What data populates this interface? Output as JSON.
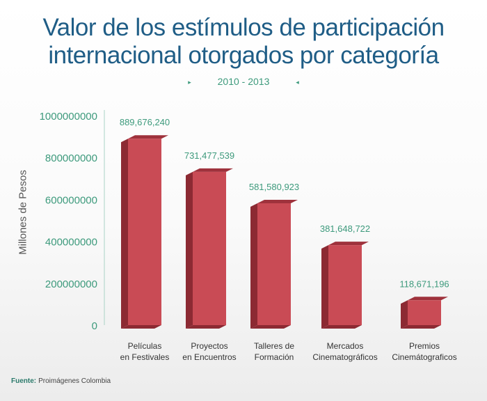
{
  "header": {
    "title_line1": "Valor de los estímulos de participación",
    "title_line2": "internacional otorgados por categoría",
    "period": "2010 - 2013",
    "marker_left": "▸",
    "marker_right": "◂"
  },
  "footer": {
    "source_label": "Fuente:",
    "source_value": "Proimágenes Colombia"
  },
  "colors": {
    "bar_front": "#c94b55",
    "bar_side": "#8c2a33",
    "bar_top": "#9e323c",
    "axis_tick_text": "#3d9a7c",
    "value_label": "#3d9a7c",
    "title": "#1f5d86"
  },
  "chart_data": {
    "type": "bar",
    "title": "Valor de los estímulos de participación internacional otorgados por categoría",
    "subtitle": "2010 - 2013",
    "ylabel": "Millones de Pesos",
    "xlabel": "",
    "ylim": [
      0,
      1000000000
    ],
    "yticks": [
      0,
      200000000,
      400000000,
      600000000,
      800000000,
      1000000000
    ],
    "ytick_labels": [
      "0",
      "200000000",
      "400000000",
      "600000000",
      "800000000",
      "1000000000"
    ],
    "categories": [
      [
        "Películas",
        "en Festivales"
      ],
      [
        "Proyectos",
        "en Encuentros"
      ],
      [
        "Talleres de",
        "Formación"
      ],
      [
        "Mercados",
        "Cinematográficos"
      ],
      [
        "Premios",
        "Cinemátograficos"
      ]
    ],
    "values": [
      889676240,
      731477539,
      581580923,
      381648722,
      118671196
    ],
    "value_labels": [
      "889,676,240",
      "731,477,539",
      "581,580,923",
      "381,648,722",
      "118,671,196"
    ],
    "grid": false,
    "legend": "none"
  }
}
